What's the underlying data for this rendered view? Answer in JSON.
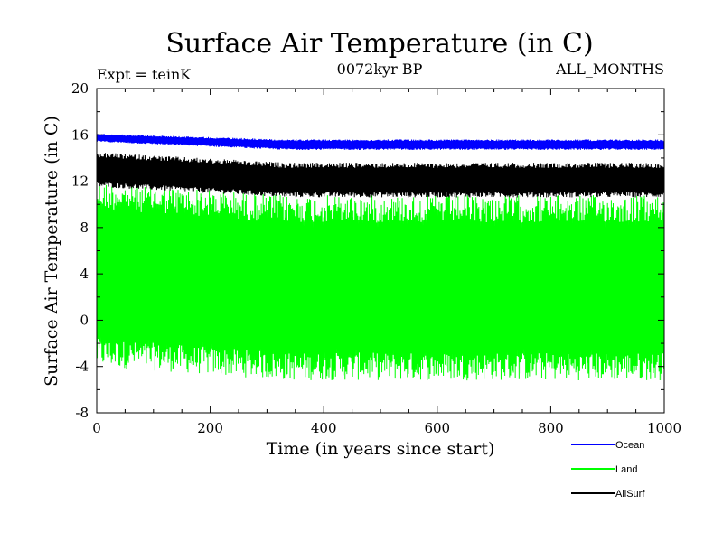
{
  "chart_data": {
    "type": "line",
    "title": "Surface Air Temperature (in C)",
    "subtitle": "0072kyr BP",
    "experiment_label": "Expt = teinK",
    "months_label": "ALL_MONTHS",
    "xlabel": "Time (in years since start)",
    "ylabel": "Surface Air Temperature (in C)",
    "xlim": [
      0,
      1000
    ],
    "ylim": [
      -8,
      20
    ],
    "x_ticks": [
      0,
      200,
      400,
      600,
      800,
      1000
    ],
    "y_ticks": [
      -8,
      -4,
      0,
      4,
      8,
      12,
      16,
      20
    ],
    "legend_position": "bottom-right",
    "series": [
      {
        "name": "Ocean",
        "color": "#0000ff",
        "band_low_start": 15.4,
        "band_high_start": 16.1,
        "band_low_end": 14.7,
        "band_high_end": 15.6
      },
      {
        "name": "Land",
        "color": "#00ff00",
        "band_low_start": -4.0,
        "band_high_start": 12.0,
        "band_low_end": -5.2,
        "band_high_end": 10.8
      },
      {
        "name": "AllSurf",
        "color": "#000000",
        "band_low_start": 11.5,
        "band_high_start": 14.5,
        "band_low_end": 10.6,
        "band_high_end": 13.6
      }
    ]
  }
}
